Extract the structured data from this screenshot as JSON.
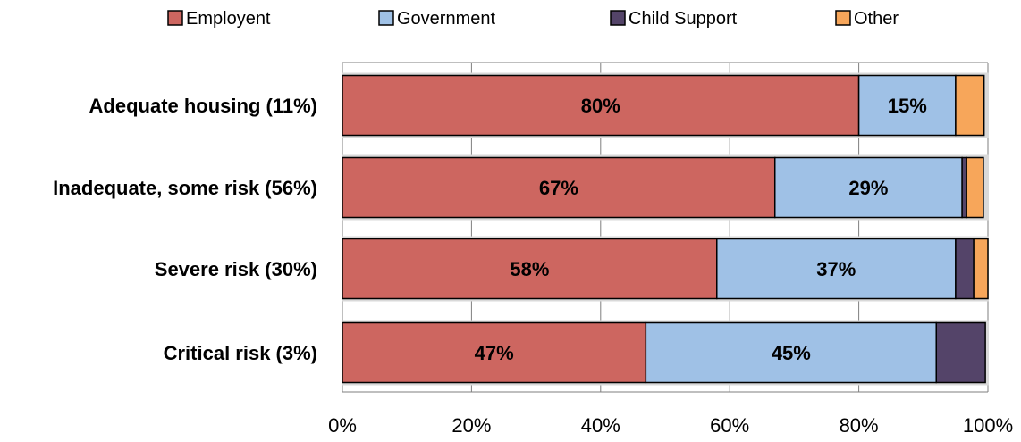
{
  "chart_data": {
    "type": "bar",
    "orientation": "horizontal",
    "stacked": true,
    "categories": [
      "Adequate housing (11%)",
      "Inadequate, some risk (56%)",
      "Severe risk (30%)",
      "Critical risk (3%)"
    ],
    "series": [
      {
        "name": "Employent",
        "color": "#CD6660",
        "values": [
          80,
          67,
          58,
          47
        ],
        "labels": [
          "80%",
          "67%",
          "58%",
          "47%"
        ]
      },
      {
        "name": "Government",
        "color": "#9FC1E6",
        "values": [
          15,
          29,
          37,
          45
        ],
        "labels": [
          "15%",
          "29%",
          "37%",
          "45%"
        ]
      },
      {
        "name": "Child Support",
        "color": "#544469",
        "values": [
          0,
          0.7,
          2.8,
          7.6
        ],
        "labels": [
          "",
          "",
          "",
          ""
        ]
      },
      {
        "name": "Other",
        "color": "#F7A65A",
        "values": [
          4.4,
          2.6,
          2.5,
          0
        ],
        "labels": [
          "",
          "",
          "",
          ""
        ]
      }
    ],
    "xlim": [
      0,
      100
    ],
    "x_ticks": [
      "0%",
      "20%",
      "40%",
      "60%",
      "80%",
      "100%"
    ],
    "x_tick_values": [
      0,
      20,
      40,
      60,
      80,
      100
    ],
    "grid": true,
    "legend": "top"
  }
}
